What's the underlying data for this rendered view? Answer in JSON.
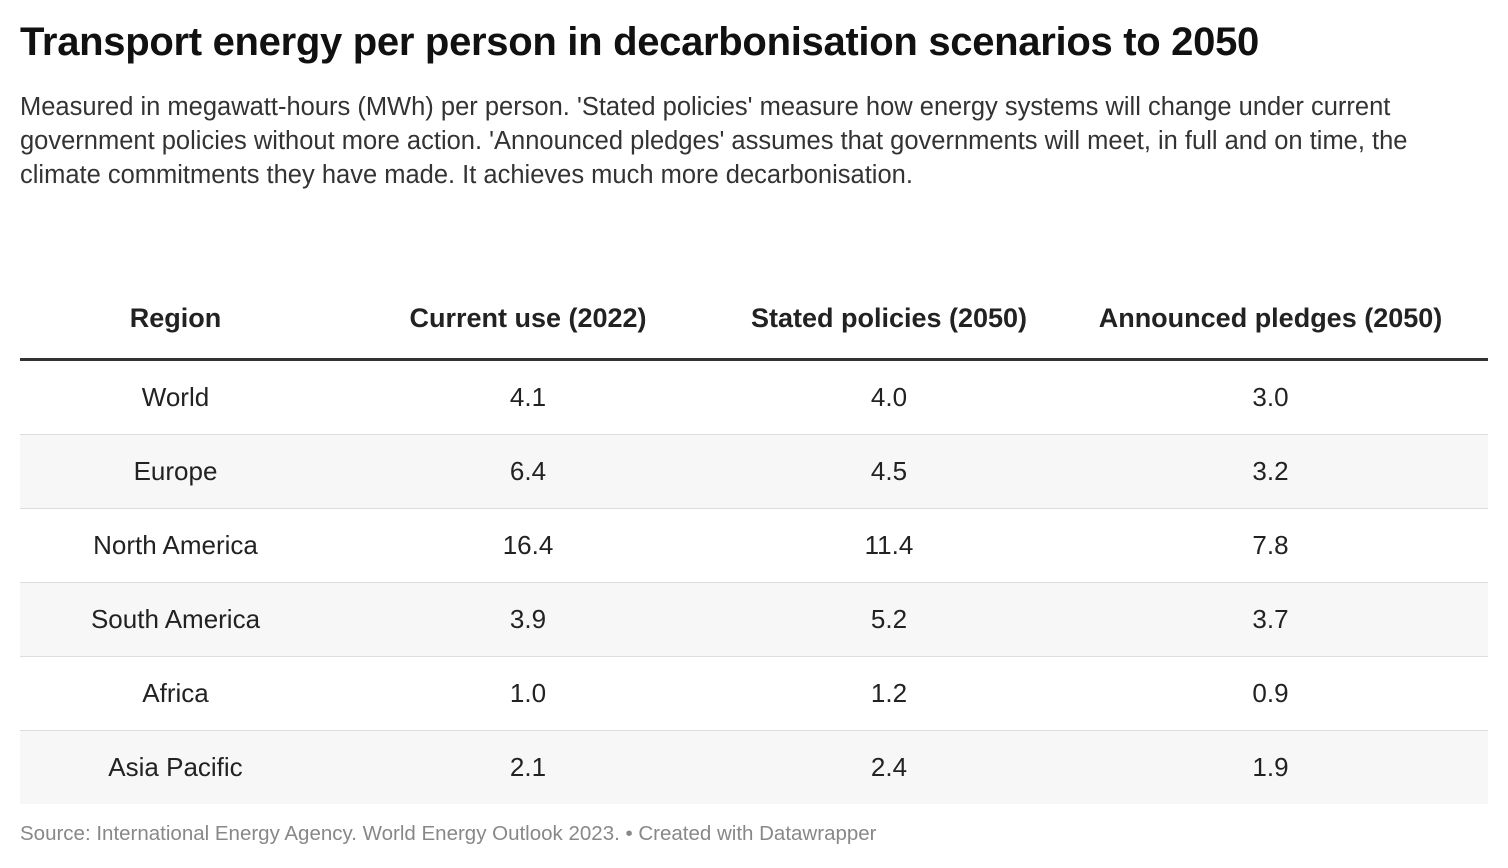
{
  "header": {
    "title": "Transport energy per person in decarbonisation scenarios to 2050",
    "subtitle": "Measured in megawatt-hours (MWh) per person. 'Stated policies' measure how energy systems will change under current government policies without more action. 'Announced pledges' assumes that governments will meet, in full and on time, the climate commitments they have made. It achieves much more decarbonisation."
  },
  "chart_data": {
    "type": "table",
    "title": "Transport energy per person in decarbonisation scenarios to 2050",
    "columns": [
      "Region",
      "Current use (2022)",
      "Stated policies (2050)",
      "Announced pledges (2050)"
    ],
    "rows": [
      [
        "World",
        "4.1",
        "4.0",
        "3.0"
      ],
      [
        "Europe",
        "6.4",
        "4.5",
        "3.2"
      ],
      [
        "North America",
        "16.4",
        "11.4",
        "7.8"
      ],
      [
        "South America",
        "3.9",
        "5.2",
        "3.7"
      ],
      [
        "Africa",
        "1.0",
        "1.2",
        "0.9"
      ],
      [
        "Asia Pacific",
        "2.1",
        "2.4",
        "1.9"
      ]
    ]
  },
  "footer": {
    "source": "Source: International Energy Agency. World Energy Outlook 2023. • Created with Datawrapper"
  },
  "colors": {
    "header_rule": "#333333",
    "row_stripe": "#f7f7f7",
    "row_divider": "#dddddd",
    "source_text": "#888888"
  }
}
